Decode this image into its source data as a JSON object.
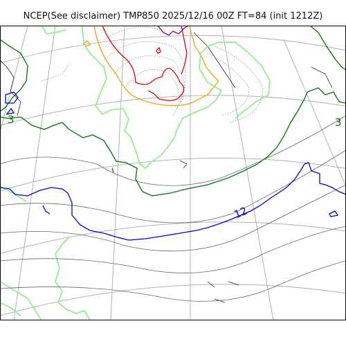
{
  "title": "NCEP(See disclaimer) TMP850 2025/12/16 00Z FT=84 (init 1212Z)",
  "colors": {
    "grid": "#a8a8a8",
    "coast": "#222222",
    "frame": "#000000",
    "c_neg": "#8a8a8a",
    "c_purple": "#800080",
    "c_red": "#e00000",
    "c_orange": "#f0a000",
    "c_lightgreen": "#90ee90",
    "c_green": "#007000",
    "c_blue": "#0000e0",
    "c_gray": "#666666"
  },
  "contour_labels": [
    {
      "text": "3",
      "color": "#007000"
    },
    {
      "text": "3",
      "color": "#007000"
    },
    {
      "text": "12",
      "color": "#0000e0"
    }
  ]
}
